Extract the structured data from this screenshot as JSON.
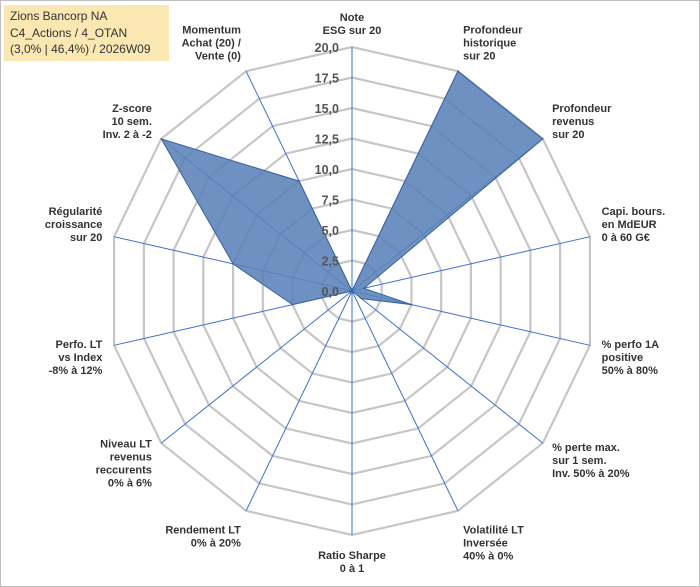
{
  "info": {
    "line1": "Zions Bancorp NA",
    "line2": "C4_Actions / 4_OTAN",
    "line3": "(3,0% | 46,4%) / 2026W09"
  },
  "colors": {
    "fill": "#5b82b8",
    "edge": "#3a62a0",
    "grid": "#c6c6c6",
    "spoke": "#3a6fd0",
    "info_bg": "#fbe7b2"
  },
  "chart_data": {
    "type": "radar",
    "rmin": 0,
    "rmax": 20,
    "ticks": [
      "0,0",
      "2,5",
      "5,0",
      "7,5",
      "10,0",
      "12,5",
      "15,0",
      "17,5",
      "20,0"
    ],
    "axes": [
      {
        "label": [
          "Note",
          "ESG sur 20"
        ],
        "value": 0
      },
      {
        "label": [
          "Profondeur",
          "historique",
          "sur 20"
        ],
        "value": 20
      },
      {
        "label": [
          "Profondeur",
          "revenus",
          "sur 20"
        ],
        "value": 20
      },
      {
        "label": [
          "Capi. bours.",
          "en MdEUR",
          "0 à 60 G€"
        ],
        "value": 1
      },
      {
        "label": [
          "% perfo 1A",
          "positive",
          "50% à 80%"
        ],
        "value": 5
      },
      {
        "label": [
          "% perte max.",
          "sur 1 sem.",
          "Inv. 50% à 20%"
        ],
        "value": 1
      },
      {
        "label": [
          "Volatilité LT",
          "Inversée",
          "40% à 0%"
        ],
        "value": 0
      },
      {
        "label": [
          "Ratio Sharpe",
          "0 à 1"
        ],
        "value": 0
      },
      {
        "label": [
          "Rendement LT",
          "0% à 20%"
        ],
        "value": 0
      },
      {
        "label": [
          "Niveau LT",
          "revenus",
          "reccurents",
          "0% à 6%"
        ],
        "value": 0
      },
      {
        "label": [
          "Perfo. LT",
          "vs Index",
          "-8% à 12%"
        ],
        "value": 5
      },
      {
        "label": [
          "Régularité",
          "croissance",
          "sur 20"
        ],
        "value": 10
      },
      {
        "label": [
          "Z-score",
          "10 sem.",
          "Inv. 2 à -2"
        ],
        "value": 20
      },
      {
        "label": [
          "Momentum",
          "Achat (20) /",
          "Vente (0)"
        ],
        "value": 10
      }
    ]
  }
}
